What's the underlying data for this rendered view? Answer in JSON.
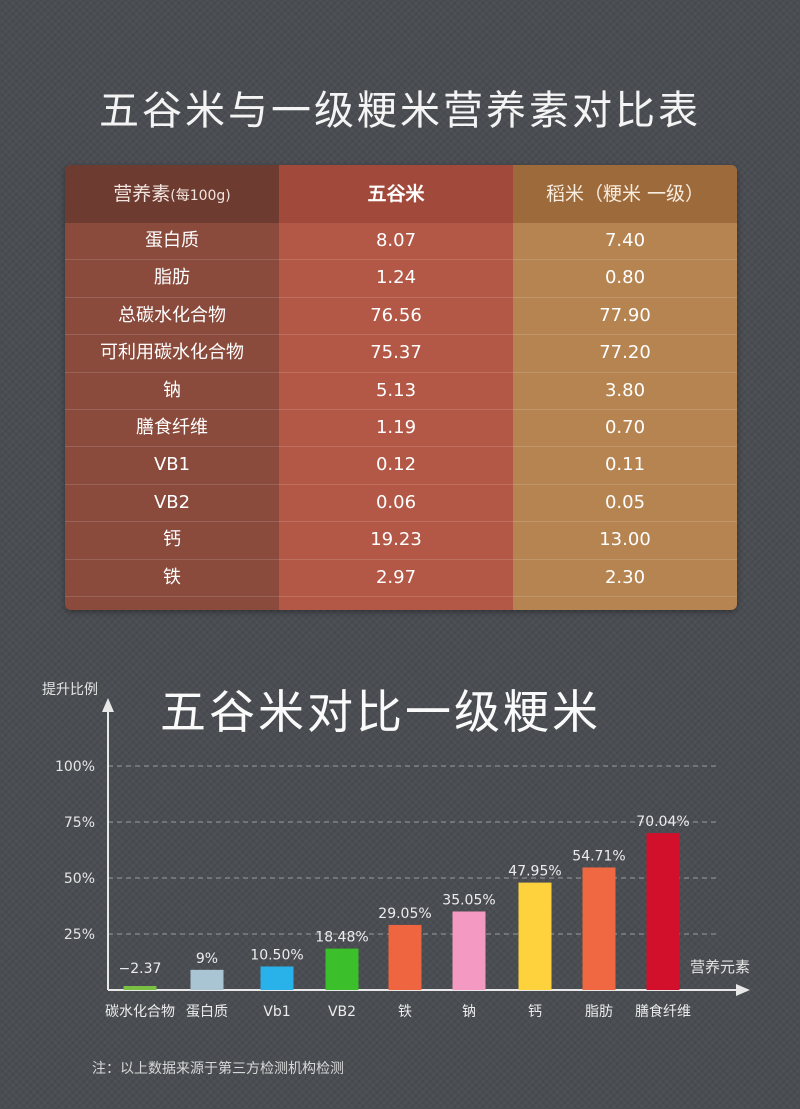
{
  "table": {
    "title": "五谷米与一级粳米营养素对比表",
    "headers": [
      "营养素",
      "(每100g)",
      "五谷米",
      "稻米（粳米 一级）"
    ],
    "rows": [
      {
        "name": "蛋白质",
        "a": "8.07",
        "b": "7.40"
      },
      {
        "name": "脂肪",
        "a": "1.24",
        "b": "0.80"
      },
      {
        "name": "总碳水化合物",
        "a": "76.56",
        "b": "77.90"
      },
      {
        "name": "可利用碳水化合物",
        "a": "75.37",
        "b": "77.20"
      },
      {
        "name": "钠",
        "a": "5.13",
        "b": "3.80"
      },
      {
        "name": "膳食纤维",
        "a": "1.19",
        "b": "0.70"
      },
      {
        "name": "VB1",
        "a": "0.12",
        "b": "0.11"
      },
      {
        "name": "VB2",
        "a": "0.06",
        "b": "0.05"
      },
      {
        "name": "钙",
        "a": "19.23",
        "b": "13.00"
      },
      {
        "name": "铁",
        "a": "2.97",
        "b": "2.30"
      }
    ]
  },
  "chart_data": {
    "type": "bar",
    "title": "五谷米对比一级粳米",
    "ylabel": "提升比例",
    "xlabel": "营养元素",
    "ylim": [
      0,
      100
    ],
    "yticks": [
      25,
      50,
      75,
      100
    ],
    "ytick_labels": [
      "25%",
      "50%",
      "75%",
      "100%"
    ],
    "grid": true,
    "categories": [
      "碳水化合物",
      "蛋白质",
      "Vb1",
      "VB2",
      "铁",
      "钠",
      "钙",
      "脂肪",
      "膳食纤维"
    ],
    "values": [
      -2.37,
      9,
      10.5,
      18.48,
      29.05,
      35.05,
      47.95,
      54.71,
      70.04
    ],
    "data_labels": [
      "−2.37",
      "9%",
      "10.50%",
      "18.48%",
      "29.05%",
      "35.05%",
      "47.95%",
      "54.71%",
      "70.04%"
    ],
    "colors": [
      "#7ac043",
      "#a9c5d4",
      "#29b2ea",
      "#3bbf2b",
      "#ef6540",
      "#f49ac2",
      "#fdd23d",
      "#ef6842",
      "#d3102c"
    ]
  },
  "note": "注：以上数据来源于第三方检测机构检测"
}
